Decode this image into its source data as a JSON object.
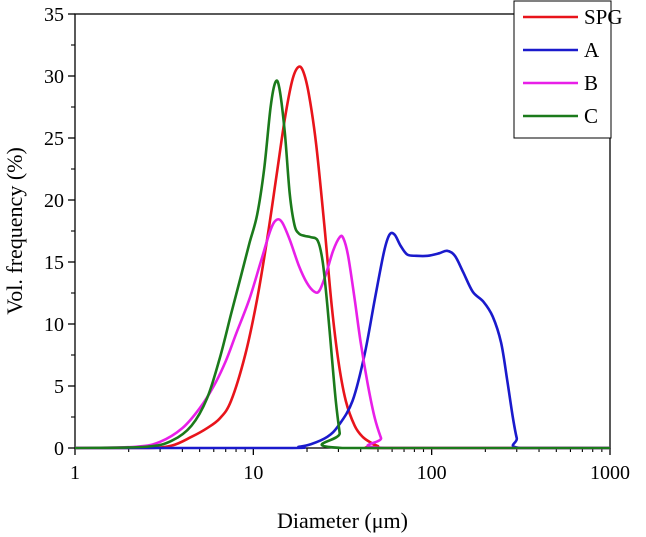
{
  "chart_data": {
    "type": "line",
    "xlabel": "Diameter (μm)",
    "ylabel": "Vol. frequency (%)",
    "xscale": "log",
    "xlim": [
      1,
      1000
    ],
    "ylim": [
      0,
      35
    ],
    "xticks": [
      1,
      10,
      100,
      1000
    ],
    "xtick_labels": [
      "1",
      "10",
      "100",
      "1000"
    ],
    "yticks": [
      0,
      5,
      10,
      15,
      20,
      25,
      30,
      35
    ],
    "ytick_labels": [
      "0",
      "5",
      "10",
      "15",
      "20",
      "25",
      "30",
      "35"
    ],
    "grid": false,
    "legend_position": "top-right",
    "series": [
      {
        "name": "SPG",
        "color": "#e8141b",
        "points": [
          [
            1,
            0
          ],
          [
            2.5,
            0
          ],
          [
            3.5,
            0.2
          ],
          [
            4.5,
            0.9
          ],
          [
            5.5,
            1.6
          ],
          [
            6.5,
            2.4
          ],
          [
            7.5,
            3.8
          ],
          [
            9,
            7.5
          ],
          [
            10.5,
            12
          ],
          [
            12,
            17
          ],
          [
            13.5,
            22
          ],
          [
            15,
            26.5
          ],
          [
            16.5,
            29.6
          ],
          [
            17.8,
            30.7
          ],
          [
            19,
            30.4
          ],
          [
            20.5,
            28.5
          ],
          [
            22.5,
            24.5
          ],
          [
            25,
            18
          ],
          [
            27.5,
            11.5
          ],
          [
            30,
            7
          ],
          [
            33,
            3.8
          ],
          [
            37,
            1.8
          ],
          [
            41,
            0.9
          ],
          [
            46,
            0.4
          ],
          [
            50,
            0.15
          ],
          [
            54,
            0
          ],
          [
            1000,
            0
          ]
        ]
      },
      {
        "name": "A",
        "color": "#1a1acc",
        "points": [
          [
            1,
            0
          ],
          [
            15,
            0
          ],
          [
            18,
            0.1
          ],
          [
            21,
            0.3
          ],
          [
            26,
            0.9
          ],
          [
            30,
            1.8
          ],
          [
            36,
            3.8
          ],
          [
            42,
            7.5
          ],
          [
            48,
            12
          ],
          [
            54,
            15.8
          ],
          [
            58,
            17.2
          ],
          [
            62,
            17.2
          ],
          [
            67,
            16.3
          ],
          [
            73,
            15.6
          ],
          [
            82,
            15.5
          ],
          [
            95,
            15.5
          ],
          [
            110,
            15.7
          ],
          [
            122,
            15.9
          ],
          [
            135,
            15.5
          ],
          [
            150,
            14.2
          ],
          [
            170,
            12.6
          ],
          [
            195,
            11.8
          ],
          [
            220,
            10.6
          ],
          [
            245,
            8.5
          ],
          [
            265,
            5.5
          ],
          [
            285,
            2.5
          ],
          [
            300,
            0.8
          ],
          [
            315,
            0
          ],
          [
            1000,
            0
          ]
        ]
      },
      {
        "name": "B",
        "color": "#e81fe8",
        "points": [
          [
            1,
            0
          ],
          [
            2.2,
            0.1
          ],
          [
            3,
            0.5
          ],
          [
            4,
            1.6
          ],
          [
            5,
            3.2
          ],
          [
            6,
            5
          ],
          [
            7,
            7
          ],
          [
            8,
            9.2
          ],
          [
            9.5,
            12
          ],
          [
            11,
            15
          ],
          [
            12.5,
            17.6
          ],
          [
            13.5,
            18.4
          ],
          [
            14.5,
            18.2
          ],
          [
            16,
            16.8
          ],
          [
            18,
            14.7
          ],
          [
            20,
            13.3
          ],
          [
            22,
            12.6
          ],
          [
            23.5,
            12.7
          ],
          [
            25.5,
            14
          ],
          [
            28,
            15.9
          ],
          [
            30.5,
            17
          ],
          [
            32,
            16.9
          ],
          [
            34,
            15.5
          ],
          [
            37,
            12
          ],
          [
            40,
            8.5
          ],
          [
            44,
            5
          ],
          [
            48,
            2.4
          ],
          [
            52,
            0.8
          ],
          [
            55,
            0
          ],
          [
            1000,
            0
          ]
        ]
      },
      {
        "name": "C",
        "color": "#1b7a1b",
        "points": [
          [
            1,
            0
          ],
          [
            2.5,
            0.1
          ],
          [
            3.5,
            0.6
          ],
          [
            4.5,
            1.8
          ],
          [
            5.5,
            4
          ],
          [
            6.5,
            7.3
          ],
          [
            7.5,
            10.8
          ],
          [
            8.5,
            13.8
          ],
          [
            9.5,
            16.5
          ],
          [
            10.5,
            18.8
          ],
          [
            11.5,
            22.5
          ],
          [
            12.5,
            27.5
          ],
          [
            13.3,
            29.5
          ],
          [
            14,
            29
          ],
          [
            15,
            25.5
          ],
          [
            16,
            20.5
          ],
          [
            17,
            18
          ],
          [
            18,
            17.3
          ],
          [
            19.5,
            17.1
          ],
          [
            21,
            17
          ],
          [
            23,
            16.7
          ],
          [
            24.5,
            15
          ],
          [
            26,
            11.5
          ],
          [
            27.5,
            7.5
          ],
          [
            29,
            3.8
          ],
          [
            30.5,
            1.2
          ],
          [
            31.5,
            0
          ],
          [
            1000,
            0
          ]
        ]
      }
    ]
  }
}
